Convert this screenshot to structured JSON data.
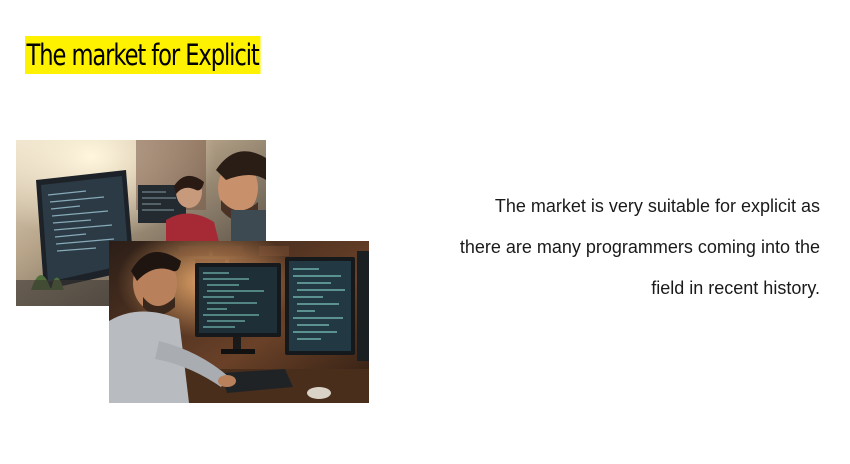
{
  "slide": {
    "title": "The market for Explicit",
    "body_lines": [
      "The market is very suitable for explicit as",
      "there are many programmers coming into the",
      "field in recent history."
    ]
  },
  "colors": {
    "title_highlight": "#fff200",
    "text": "#1a1a1a",
    "background": "#ffffff"
  }
}
